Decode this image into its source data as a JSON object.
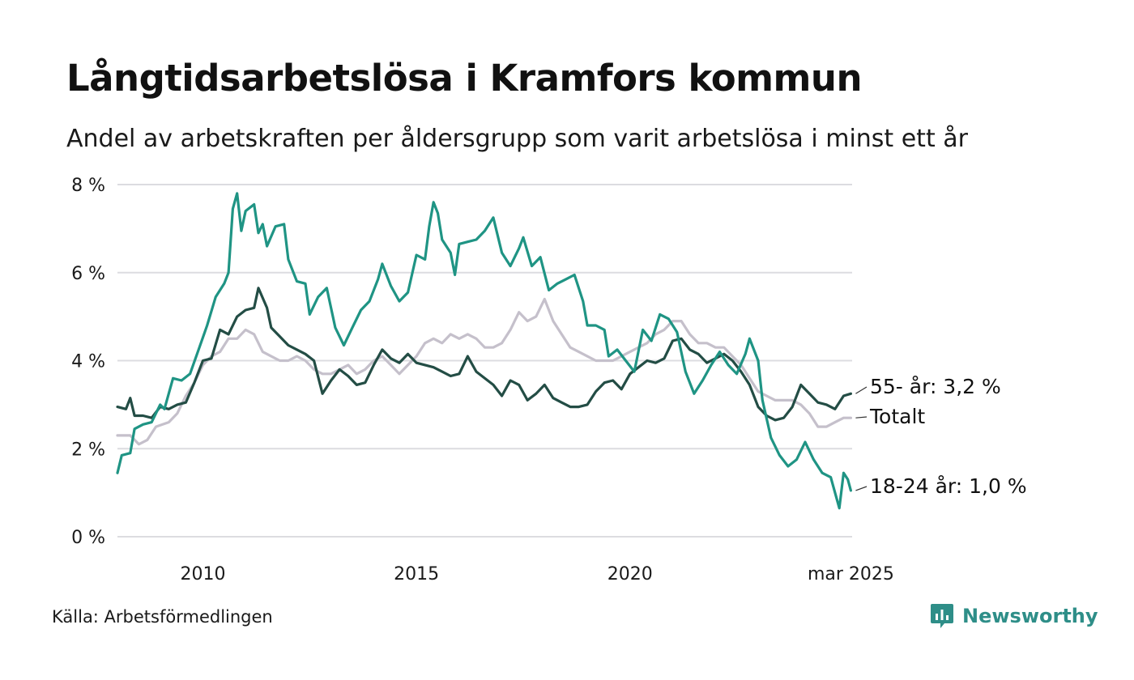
{
  "title": "Långtidsarbetslösa i Kramfors kommun",
  "subtitle": "Andel av arbetskraften per åldersgrupp som varit arbetslösa i minst ett år",
  "source": "Källa: Arbetsförmedlingen",
  "brand": {
    "name": "Newsworthy",
    "icon": "newsworthy-logo-icon",
    "color": "#2e8e88"
  },
  "chart_data": {
    "type": "line",
    "x_range": [
      2008.0,
      2025.2
    ],
    "ylim": [
      0,
      8
    ],
    "y_ticks": [
      {
        "value": 0,
        "label": "0 %"
      },
      {
        "value": 2,
        "label": "2 %"
      },
      {
        "value": 4,
        "label": "4 %"
      },
      {
        "value": 6,
        "label": "6 %"
      },
      {
        "value": 8,
        "label": "8 %"
      }
    ],
    "x_ticks": [
      {
        "value": 2010,
        "label": "2010"
      },
      {
        "value": 2015,
        "label": "2015"
      },
      {
        "value": 2020,
        "label": "2020"
      },
      {
        "value": 2025.17,
        "label": "mar 2025"
      }
    ],
    "grid": true,
    "series": [
      {
        "key": "total",
        "label": "Totalt",
        "color": "#c5c0cb",
        "points": [
          [
            2008.0,
            2.3
          ],
          [
            2008.3,
            2.3
          ],
          [
            2008.5,
            2.1
          ],
          [
            2008.7,
            2.2
          ],
          [
            2008.9,
            2.5
          ],
          [
            2009.2,
            2.6
          ],
          [
            2009.4,
            2.8
          ],
          [
            2009.6,
            3.2
          ],
          [
            2009.8,
            3.5
          ],
          [
            2010.0,
            3.9
          ],
          [
            2010.2,
            4.1
          ],
          [
            2010.4,
            4.2
          ],
          [
            2010.6,
            4.5
          ],
          [
            2010.8,
            4.5
          ],
          [
            2011.0,
            4.7
          ],
          [
            2011.2,
            4.6
          ],
          [
            2011.4,
            4.2
          ],
          [
            2011.6,
            4.1
          ],
          [
            2011.8,
            4.0
          ],
          [
            2012.0,
            4.0
          ],
          [
            2012.2,
            4.1
          ],
          [
            2012.4,
            4.0
          ],
          [
            2012.6,
            3.8
          ],
          [
            2012.8,
            3.7
          ],
          [
            2013.0,
            3.7
          ],
          [
            2013.2,
            3.8
          ],
          [
            2013.4,
            3.9
          ],
          [
            2013.6,
            3.7
          ],
          [
            2013.8,
            3.8
          ],
          [
            2014.0,
            4.0
          ],
          [
            2014.2,
            4.1
          ],
          [
            2014.4,
            3.9
          ],
          [
            2014.6,
            3.7
          ],
          [
            2014.8,
            3.9
          ],
          [
            2015.0,
            4.1
          ],
          [
            2015.2,
            4.4
          ],
          [
            2015.4,
            4.5
          ],
          [
            2015.6,
            4.4
          ],
          [
            2015.8,
            4.6
          ],
          [
            2016.0,
            4.5
          ],
          [
            2016.2,
            4.6
          ],
          [
            2016.4,
            4.5
          ],
          [
            2016.6,
            4.3
          ],
          [
            2016.8,
            4.3
          ],
          [
            2017.0,
            4.4
          ],
          [
            2017.2,
            4.7
          ],
          [
            2017.4,
            5.1
          ],
          [
            2017.6,
            4.9
          ],
          [
            2017.8,
            5.0
          ],
          [
            2018.0,
            5.4
          ],
          [
            2018.2,
            4.9
          ],
          [
            2018.4,
            4.6
          ],
          [
            2018.6,
            4.3
          ],
          [
            2018.8,
            4.2
          ],
          [
            2019.0,
            4.1
          ],
          [
            2019.2,
            4.0
          ],
          [
            2019.4,
            4.0
          ],
          [
            2019.6,
            4.0
          ],
          [
            2019.8,
            4.1
          ],
          [
            2020.0,
            4.2
          ],
          [
            2020.2,
            4.3
          ],
          [
            2020.4,
            4.4
          ],
          [
            2020.6,
            4.6
          ],
          [
            2020.8,
            4.7
          ],
          [
            2021.0,
            4.9
          ],
          [
            2021.2,
            4.9
          ],
          [
            2021.4,
            4.6
          ],
          [
            2021.6,
            4.4
          ],
          [
            2021.8,
            4.4
          ],
          [
            2022.0,
            4.3
          ],
          [
            2022.2,
            4.3
          ],
          [
            2022.4,
            4.1
          ],
          [
            2022.6,
            3.9
          ],
          [
            2022.8,
            3.6
          ],
          [
            2023.0,
            3.3
          ],
          [
            2023.2,
            3.2
          ],
          [
            2023.4,
            3.1
          ],
          [
            2023.6,
            3.1
          ],
          [
            2023.8,
            3.1
          ],
          [
            2024.0,
            3.0
          ],
          [
            2024.2,
            2.8
          ],
          [
            2024.4,
            2.5
          ],
          [
            2024.6,
            2.5
          ],
          [
            2024.8,
            2.6
          ],
          [
            2025.0,
            2.7
          ],
          [
            2025.17,
            2.7
          ]
        ]
      },
      {
        "key": "55plus",
        "label": "55- år: 3,2 %",
        "color": "#234d45",
        "points": [
          [
            2008.0,
            2.95
          ],
          [
            2008.2,
            2.9
          ],
          [
            2008.3,
            3.15
          ],
          [
            2008.4,
            2.75
          ],
          [
            2008.6,
            2.75
          ],
          [
            2008.8,
            2.7
          ],
          [
            2009.0,
            2.95
          ],
          [
            2009.2,
            2.9
          ],
          [
            2009.4,
            3.0
          ],
          [
            2009.6,
            3.05
          ],
          [
            2009.8,
            3.5
          ],
          [
            2010.0,
            4.0
          ],
          [
            2010.2,
            4.05
          ],
          [
            2010.4,
            4.7
          ],
          [
            2010.6,
            4.6
          ],
          [
            2010.8,
            5.0
          ],
          [
            2011.0,
            5.15
          ],
          [
            2011.2,
            5.2
          ],
          [
            2011.3,
            5.65
          ],
          [
            2011.5,
            5.2
          ],
          [
            2011.6,
            4.75
          ],
          [
            2011.8,
            4.55
          ],
          [
            2012.0,
            4.35
          ],
          [
            2012.2,
            4.25
          ],
          [
            2012.4,
            4.15
          ],
          [
            2012.6,
            4.0
          ],
          [
            2012.8,
            3.25
          ],
          [
            2013.0,
            3.55
          ],
          [
            2013.2,
            3.8
          ],
          [
            2013.4,
            3.65
          ],
          [
            2013.6,
            3.45
          ],
          [
            2013.8,
            3.5
          ],
          [
            2014.0,
            3.9
          ],
          [
            2014.2,
            4.25
          ],
          [
            2014.4,
            4.05
          ],
          [
            2014.6,
            3.95
          ],
          [
            2014.8,
            4.15
          ],
          [
            2015.0,
            3.95
          ],
          [
            2015.2,
            3.9
          ],
          [
            2015.4,
            3.85
          ],
          [
            2015.6,
            3.75
          ],
          [
            2015.8,
            3.65
          ],
          [
            2016.0,
            3.7
          ],
          [
            2016.2,
            4.1
          ],
          [
            2016.4,
            3.75
          ],
          [
            2016.6,
            3.6
          ],
          [
            2016.8,
            3.45
          ],
          [
            2017.0,
            3.2
          ],
          [
            2017.2,
            3.55
          ],
          [
            2017.4,
            3.45
          ],
          [
            2017.6,
            3.1
          ],
          [
            2017.8,
            3.25
          ],
          [
            2018.0,
            3.45
          ],
          [
            2018.2,
            3.15
          ],
          [
            2018.4,
            3.05
          ],
          [
            2018.6,
            2.95
          ],
          [
            2018.8,
            2.95
          ],
          [
            2019.0,
            3.0
          ],
          [
            2019.2,
            3.3
          ],
          [
            2019.4,
            3.5
          ],
          [
            2019.6,
            3.55
          ],
          [
            2019.8,
            3.35
          ],
          [
            2020.0,
            3.7
          ],
          [
            2020.2,
            3.85
          ],
          [
            2020.4,
            4.0
          ],
          [
            2020.6,
            3.95
          ],
          [
            2020.8,
            4.05
          ],
          [
            2021.0,
            4.45
          ],
          [
            2021.2,
            4.5
          ],
          [
            2021.4,
            4.25
          ],
          [
            2021.6,
            4.15
          ],
          [
            2021.8,
            3.95
          ],
          [
            2022.0,
            4.05
          ],
          [
            2022.2,
            4.15
          ],
          [
            2022.4,
            4.0
          ],
          [
            2022.6,
            3.75
          ],
          [
            2022.8,
            3.45
          ],
          [
            2023.0,
            2.95
          ],
          [
            2023.2,
            2.75
          ],
          [
            2023.4,
            2.65
          ],
          [
            2023.6,
            2.7
          ],
          [
            2023.8,
            2.95
          ],
          [
            2024.0,
            3.45
          ],
          [
            2024.2,
            3.25
          ],
          [
            2024.4,
            3.05
          ],
          [
            2024.6,
            3.0
          ],
          [
            2024.8,
            2.9
          ],
          [
            2025.0,
            3.2
          ],
          [
            2025.17,
            3.25
          ]
        ]
      },
      {
        "key": "18to24",
        "label": "18-24 år: 1,0 %",
        "color": "#1f9484",
        "points": [
          [
            2008.0,
            1.45
          ],
          [
            2008.1,
            1.85
          ],
          [
            2008.3,
            1.9
          ],
          [
            2008.4,
            2.45
          ],
          [
            2008.6,
            2.55
          ],
          [
            2008.8,
            2.6
          ],
          [
            2009.0,
            3.0
          ],
          [
            2009.1,
            2.9
          ],
          [
            2009.3,
            3.6
          ],
          [
            2009.5,
            3.55
          ],
          [
            2009.7,
            3.7
          ],
          [
            2009.9,
            4.25
          ],
          [
            2010.1,
            4.8
          ],
          [
            2010.3,
            5.45
          ],
          [
            2010.5,
            5.75
          ],
          [
            2010.6,
            6.0
          ],
          [
            2010.7,
            7.45
          ],
          [
            2010.8,
            7.8
          ],
          [
            2010.9,
            6.95
          ],
          [
            2011.0,
            7.4
          ],
          [
            2011.2,
            7.55
          ],
          [
            2011.3,
            6.9
          ],
          [
            2011.4,
            7.1
          ],
          [
            2011.5,
            6.6
          ],
          [
            2011.7,
            7.05
          ],
          [
            2011.9,
            7.1
          ],
          [
            2012.0,
            6.3
          ],
          [
            2012.2,
            5.8
          ],
          [
            2012.4,
            5.75
          ],
          [
            2012.5,
            5.05
          ],
          [
            2012.7,
            5.45
          ],
          [
            2012.9,
            5.65
          ],
          [
            2013.1,
            4.75
          ],
          [
            2013.3,
            4.35
          ],
          [
            2013.5,
            4.75
          ],
          [
            2013.7,
            5.15
          ],
          [
            2013.9,
            5.35
          ],
          [
            2014.1,
            5.85
          ],
          [
            2014.2,
            6.2
          ],
          [
            2014.4,
            5.7
          ],
          [
            2014.6,
            5.35
          ],
          [
            2014.8,
            5.55
          ],
          [
            2015.0,
            6.4
          ],
          [
            2015.2,
            6.3
          ],
          [
            2015.3,
            7.05
          ],
          [
            2015.4,
            7.6
          ],
          [
            2015.5,
            7.35
          ],
          [
            2015.6,
            6.75
          ],
          [
            2015.8,
            6.45
          ],
          [
            2015.9,
            5.95
          ],
          [
            2016.0,
            6.65
          ],
          [
            2016.2,
            6.7
          ],
          [
            2016.4,
            6.75
          ],
          [
            2016.6,
            6.95
          ],
          [
            2016.8,
            7.25
          ],
          [
            2017.0,
            6.45
          ],
          [
            2017.2,
            6.15
          ],
          [
            2017.4,
            6.55
          ],
          [
            2017.5,
            6.8
          ],
          [
            2017.7,
            6.15
          ],
          [
            2017.9,
            6.35
          ],
          [
            2018.1,
            5.6
          ],
          [
            2018.3,
            5.75
          ],
          [
            2018.5,
            5.85
          ],
          [
            2018.7,
            5.95
          ],
          [
            2018.9,
            5.35
          ],
          [
            2019.0,
            4.8
          ],
          [
            2019.2,
            4.8
          ],
          [
            2019.4,
            4.7
          ],
          [
            2019.5,
            4.1
          ],
          [
            2019.7,
            4.25
          ],
          [
            2019.9,
            4.0
          ],
          [
            2020.1,
            3.75
          ],
          [
            2020.3,
            4.7
          ],
          [
            2020.5,
            4.45
          ],
          [
            2020.7,
            5.05
          ],
          [
            2020.9,
            4.95
          ],
          [
            2021.1,
            4.65
          ],
          [
            2021.3,
            3.75
          ],
          [
            2021.5,
            3.25
          ],
          [
            2021.7,
            3.55
          ],
          [
            2021.9,
            3.9
          ],
          [
            2022.1,
            4.2
          ],
          [
            2022.3,
            3.9
          ],
          [
            2022.5,
            3.7
          ],
          [
            2022.7,
            4.15
          ],
          [
            2022.8,
            4.5
          ],
          [
            2023.0,
            4.0
          ],
          [
            2023.1,
            3.1
          ],
          [
            2023.3,
            2.25
          ],
          [
            2023.5,
            1.85
          ],
          [
            2023.7,
            1.6
          ],
          [
            2023.9,
            1.75
          ],
          [
            2024.1,
            2.15
          ],
          [
            2024.3,
            1.75
          ],
          [
            2024.5,
            1.45
          ],
          [
            2024.7,
            1.35
          ],
          [
            2024.9,
            0.65
          ],
          [
            2025.0,
            1.45
          ],
          [
            2025.1,
            1.3
          ],
          [
            2025.17,
            1.05
          ]
        ]
      }
    ]
  }
}
